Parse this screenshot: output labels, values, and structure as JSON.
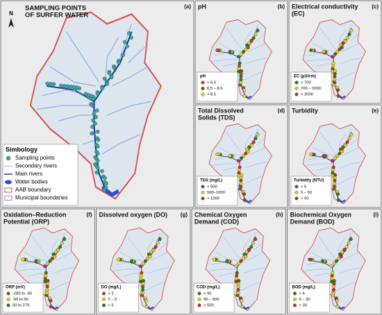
{
  "panels": [
    {
      "letter": "(a)",
      "title": [
        "SAMPLING POINTS",
        "OF SURFER WATER"
      ],
      "north": "N",
      "legend": {
        "title": "Simbology",
        "items": [
          {
            "label": "Sampling points",
            "color": "#3aa6a0"
          },
          {
            "label": "Secondary rivers",
            "color": "#7fa8e0"
          },
          {
            "label": "Main rivers",
            "color": "#1c3f9e"
          },
          {
            "label": "Water bodies",
            "color": "#2a4fd0"
          },
          {
            "label": "AAB boundary",
            "color": "#d9534f"
          },
          {
            "label": "Municipal boundaries",
            "color": "#9a9a9a"
          }
        ]
      }
    },
    {
      "letter": "(b)",
      "title": [
        "pH"
      ],
      "legend": {
        "title": "pH",
        "items": [
          {
            "label": "< 6.5",
            "color": "#d9421e"
          },
          {
            "label": "6.5 – 8.5",
            "color": "#2f7d14"
          },
          {
            "label": "> 8.5",
            "color": "#e8d21a"
          }
        ]
      }
    },
    {
      "letter": "(c)",
      "title": [
        "Electrical conductivity",
        "(EC)"
      ],
      "legend": {
        "title": "EC (µS/cm)",
        "items": [
          {
            "label": "< 700",
            "color": "#2f7d14"
          },
          {
            "label": "700 – 3000",
            "color": "#e8d21a"
          },
          {
            "label": "> 3000",
            "color": "#d42a1e"
          }
        ]
      }
    },
    {
      "letter": "(d)",
      "title": [
        "Total Dissolved",
        "Solids (TDS)"
      ],
      "legend": {
        "title": "TDS (mg/L)",
        "items": [
          {
            "label": "< 500",
            "color": "#2f7d14"
          },
          {
            "label": "500–1000",
            "color": "#e8d21a"
          },
          {
            "label": "> 1000",
            "color": "#d42a1e"
          }
        ]
      }
    },
    {
      "letter": "(e)",
      "title": [
        "Turbidity"
      ],
      "legend": {
        "title": "Turbidity (NTU)",
        "items": [
          {
            "label": "< 5",
            "color": "#2f7d14"
          },
          {
            "label": "5 – 50",
            "color": "#e8d21a"
          },
          {
            "label": "> 50",
            "color": "#d42a1e"
          }
        ]
      }
    },
    {
      "letter": "(f)",
      "title": [
        "Oxidation–Reduction",
        "Potential (ORP)"
      ],
      "legend": {
        "title": "ORP (mV)",
        "items": [
          {
            "label": "-280 to -50",
            "color": "#d42a1e"
          },
          {
            "label": "-50 to 50",
            "color": "#e8d21a"
          },
          {
            "label": "50 to 279",
            "color": "#2f7d14"
          }
        ]
      }
    },
    {
      "letter": "(g)",
      "title": [
        "Dissolved oxygen (DO)"
      ],
      "legend": {
        "title": "DO (mg/L)",
        "items": [
          {
            "label": "< 2",
            "color": "#d42a1e"
          },
          {
            "label": "2 – 5",
            "color": "#e8d21a"
          },
          {
            "label": "> 5",
            "color": "#2f7d14"
          }
        ]
      }
    },
    {
      "letter": "(h)",
      "title": [
        "Chemical Oxygen",
        "Demand (COD)"
      ],
      "legend": {
        "title": "COD (mg/L)",
        "items": [
          {
            "label": "< 90",
            "color": "#2f7d14"
          },
          {
            "label": "90 – 500",
            "color": "#e8d21a"
          },
          {
            "label": "> 500",
            "color": "#d42a1e"
          }
        ]
      }
    },
    {
      "letter": "(i)",
      "title": [
        "Biochemical Oxygen",
        "Demand (BOD)"
      ],
      "legend": {
        "title": "BOD (mg/L)",
        "items": [
          {
            "label": "< 6",
            "color": "#2f7d14"
          },
          {
            "label": "6 – 30",
            "color": "#e8d21a"
          },
          {
            "label": "> 30",
            "color": "#d42a1e"
          }
        ]
      }
    }
  ]
}
